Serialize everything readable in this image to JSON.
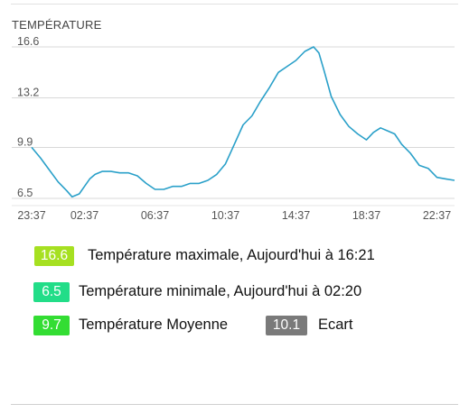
{
  "section_title": "TEMPÉRATURE",
  "chart_data": {
    "type": "line",
    "title": "",
    "xlabel": "",
    "ylabel": "",
    "ylim": [
      6.5,
      16.6
    ],
    "y_ticks": [
      "16.6",
      "13.2",
      "9.9",
      "6.5"
    ],
    "y_tick_values": [
      16.6,
      13.2,
      9.9,
      6.5
    ],
    "x_tick_labels": [
      "23:37",
      "02:37",
      "06:37",
      "10:37",
      "14:37",
      "18:37",
      "22:37"
    ],
    "x_tick_hours": [
      0,
      3,
      7,
      11,
      15,
      19,
      23
    ],
    "x_range_hours": [
      0,
      24
    ],
    "grid": true,
    "line_color": "#2aa0c9",
    "series": [
      {
        "x": [
          0.0,
          0.5,
          1.0,
          1.5,
          2.0,
          2.3,
          2.7,
          3.0,
          3.3,
          3.6,
          4.0,
          4.5,
          5.0,
          5.5,
          6.0,
          6.5,
          7.0,
          7.5,
          8.0,
          8.5,
          9.0,
          9.5,
          10.0,
          10.5,
          11.0,
          11.5,
          12.0,
          12.5,
          13.0,
          13.5,
          14.0,
          14.5,
          15.0,
          15.5,
          16.0,
          16.3,
          16.6,
          17.0,
          17.5,
          18.0,
          18.5,
          19.0,
          19.4,
          19.8,
          20.2,
          20.6,
          21.0,
          21.5,
          22.0,
          22.5,
          23.0,
          23.5,
          24.0
        ],
        "values": [
          9.9,
          9.2,
          8.4,
          7.6,
          7.0,
          6.6,
          6.8,
          7.3,
          7.8,
          8.1,
          8.3,
          8.3,
          8.2,
          8.2,
          8.0,
          7.5,
          7.1,
          7.1,
          7.3,
          7.3,
          7.5,
          7.5,
          7.7,
          8.1,
          8.8,
          10.1,
          11.4,
          12.0,
          13.0,
          13.9,
          14.9,
          15.3,
          15.7,
          16.3,
          16.6,
          16.2,
          15.0,
          13.3,
          12.1,
          11.3,
          10.8,
          10.4,
          10.9,
          11.2,
          11.0,
          10.8,
          10.1,
          9.5,
          8.7,
          8.5,
          7.9,
          7.8,
          7.7
        ]
      }
    ]
  },
  "stats": {
    "max": {
      "value": "16.6",
      "label": "Température maximale, Aujourd'hui à 16:21",
      "color": "#a6e021"
    },
    "min": {
      "value": "6.5",
      "label": "Température minimale, Aujourd'hui à 02:20",
      "color": "#22dd88"
    },
    "avg": {
      "value": "9.7",
      "label": "Température Moyenne",
      "color": "#33dd33"
    },
    "range": {
      "value": "10.1",
      "label": "Ecart",
      "color": "#7a7a7a"
    }
  }
}
